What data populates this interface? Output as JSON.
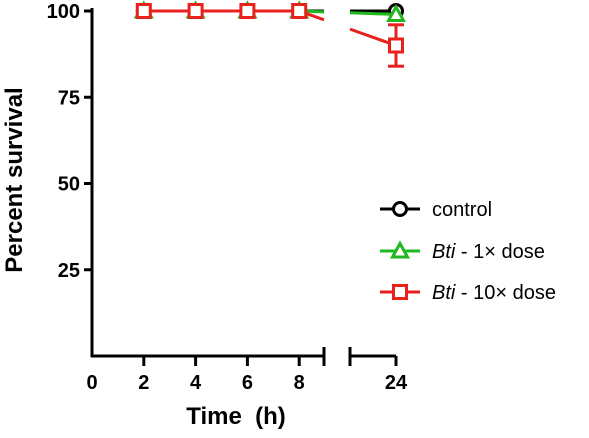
{
  "chart_data": {
    "type": "line",
    "xlabel": "Time  (h)",
    "ylabel": "Percent survival",
    "x_ticks": [
      "0",
      "2",
      "4",
      "6",
      "8",
      "24"
    ],
    "y_ticks": [
      "25",
      "50",
      "75",
      "100"
    ],
    "xlim": [
      0,
      24
    ],
    "x_axis_break": [
      9,
      24
    ],
    "ylim": [
      0,
      100
    ],
    "grid": false,
    "legend_position": "right",
    "x": [
      2,
      4,
      6,
      8,
      24
    ],
    "series": [
      {
        "name": "control",
        "marker": "circle",
        "color": "#000000",
        "values": [
          100,
          100,
          100,
          100,
          100
        ],
        "error": [
          0,
          0,
          0,
          0,
          0
        ]
      },
      {
        "name_italic": "Bti",
        "name_rest": " - 1× dose",
        "marker": "triangle",
        "color": "#1fb81f",
        "values": [
          100,
          100,
          100,
          100,
          99
        ],
        "error": [
          0,
          0,
          0,
          0,
          0
        ]
      },
      {
        "name_italic": "Bti",
        "name_rest": " - 10× dose",
        "marker": "square",
        "color": "#e8211c",
        "values": [
          100,
          100,
          100,
          100,
          90
        ],
        "error": [
          0,
          0,
          0,
          0,
          6
        ]
      }
    ]
  }
}
